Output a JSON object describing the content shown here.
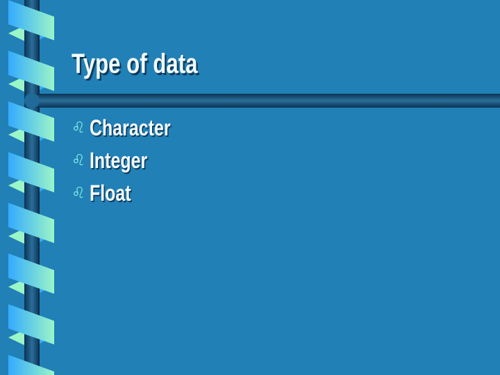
{
  "slide": {
    "title": "Type of data",
    "bullet_icon": "leo-symbol-icon",
    "bullets": [
      "Character",
      "Integer",
      "Float"
    ]
  },
  "colors": {
    "background": "#2180b6",
    "ribbon_light": "#9af5c8",
    "ribbon_blue": "#33aaff",
    "pole": "#0d3a5a"
  }
}
